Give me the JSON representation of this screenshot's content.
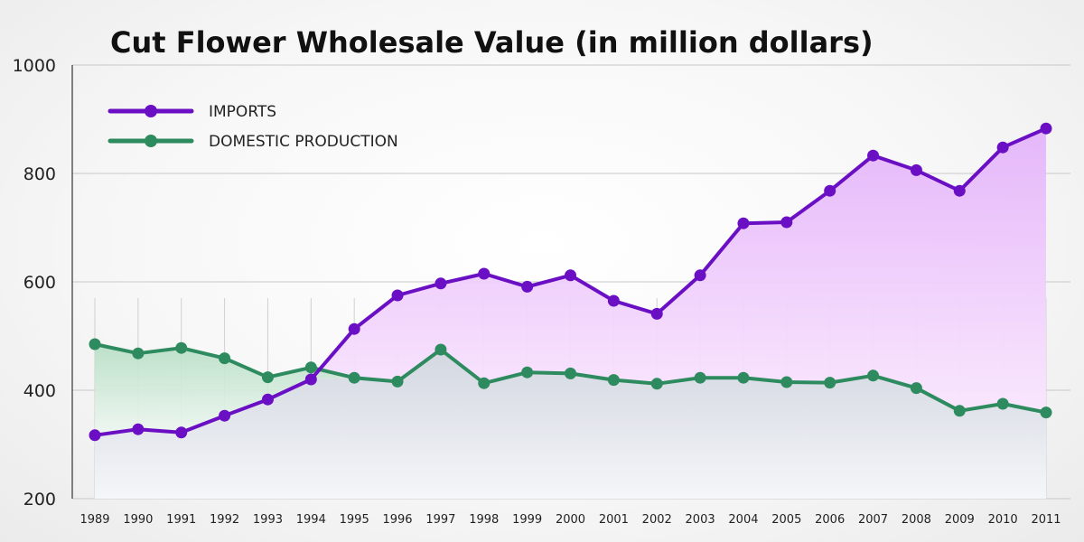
{
  "chart_data": {
    "type": "line",
    "title": "Cut Flower Wholesale Value (in million dollars)",
    "xlabel": "",
    "ylabel": "",
    "ylim": [
      200,
      1000
    ],
    "yticks": [
      "200",
      "400",
      "600",
      "800",
      "1000"
    ],
    "grid": "horizontal",
    "legend_position": "top-left",
    "categories": [
      "1989",
      "1990",
      "1991",
      "1992",
      "1993",
      "1994",
      "1995",
      "1996",
      "1997",
      "1998",
      "1999",
      "2000",
      "2001",
      "2002",
      "2003",
      "2004",
      "2005",
      "2006",
      "2007",
      "2008",
      "2009",
      "2010",
      "2011"
    ],
    "series": [
      {
        "name": "IMPORTS",
        "color": "#6a0fc4",
        "fill_color": "#eec8fb",
        "values": [
          317,
          328,
          322,
          353,
          383,
          420,
          513,
          575,
          597,
          615,
          591,
          612,
          565,
          541,
          612,
          708,
          710,
          768,
          833,
          806,
          768,
          848,
          883
        ]
      },
      {
        "name": "DOMESTIC PRODUCTION",
        "color": "#2e8b5f",
        "fill_color": "#cfe8d8",
        "values": [
          485,
          468,
          478,
          459,
          424,
          442,
          423,
          416,
          475,
          413,
          433,
          431,
          419,
          412,
          423,
          423,
          415,
          414,
          427,
          404,
          362,
          375,
          359
        ]
      }
    ]
  }
}
